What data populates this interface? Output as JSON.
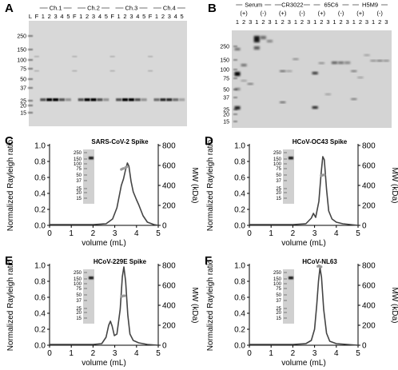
{
  "panels": {
    "A": {
      "letter": "A",
      "groups": [
        "Ch.1",
        "Ch.2",
        "Ch.3",
        "Ch.4"
      ],
      "lane_labels": [
        "L",
        "F",
        "1",
        "2",
        "3",
        "4",
        "5",
        "F",
        "1",
        "2",
        "3",
        "4",
        "5",
        "F",
        "1",
        "2",
        "3",
        "4",
        "5",
        "F",
        "1",
        "2",
        "3",
        "4",
        "5"
      ],
      "markers": [
        "250",
        "150",
        "100",
        "75",
        "50",
        "37",
        "25",
        "20",
        "15"
      ]
    },
    "B": {
      "letter": "B",
      "groups": [
        {
          "name": "Serum",
          "subs": [
            "(+)",
            "(-)"
          ],
          "lanes": [
            "1",
            "2",
            "3",
            "1",
            "2",
            "3"
          ]
        },
        {
          "name": "CR3022",
          "subs": [
            "(+)",
            "(-)"
          ],
          "lanes": [
            "1",
            "2",
            "3",
            "1",
            "2",
            "3"
          ]
        },
        {
          "name": "65C6",
          "subs": [
            "(+)",
            "(-)"
          ],
          "lanes": [
            "1",
            "2",
            "3",
            "1",
            "2",
            "3"
          ]
        },
        {
          "name": "H5M9",
          "subs": [
            "(+)",
            "(-)"
          ],
          "lanes": [
            "1",
            "2",
            "3",
            "1",
            "2",
            "3"
          ]
        }
      ],
      "markers": [
        "250",
        "150",
        "100",
        "75",
        "50",
        "37",
        "25",
        "20",
        "15"
      ]
    },
    "C": {
      "letter": "C",
      "chart_data": {
        "type": "line",
        "title": "SARS-CoV-2 Spike",
        "xlabel": "volume (mL)",
        "ylabel": "Normalized Rayleigh ratio",
        "y2label": "MW (kDa)",
        "xlim": [
          0,
          5
        ],
        "ylim": [
          0,
          1.0
        ],
        "y2lim": [
          0,
          800
        ],
        "xticks": [
          "0",
          "1",
          "2",
          "3",
          "4",
          "5"
        ],
        "yticks": [
          "0.0",
          "0.2",
          "0.4",
          "0.6",
          "0.8",
          "1.0"
        ],
        "y2ticks": [
          "0",
          "200",
          "400",
          "600",
          "800"
        ],
        "series": [
          {
            "values": [
              [
                0,
                0.01
              ],
              [
                2.0,
                0.01
              ],
              [
                2.6,
                0.02
              ],
              [
                2.9,
                0.08
              ],
              [
                3.1,
                0.22
              ],
              [
                3.3,
                0.5
              ],
              [
                3.4,
                0.58
              ],
              [
                3.5,
                0.7
              ],
              [
                3.58,
                0.78
              ],
              [
                3.65,
                0.74
              ],
              [
                3.75,
                0.55
              ],
              [
                3.85,
                0.42
              ],
              [
                4.0,
                0.32
              ],
              [
                4.1,
                0.26
              ],
              [
                4.3,
                0.12
              ],
              [
                4.5,
                0.04
              ],
              [
                4.8,
                0.01
              ],
              [
                5.0,
                0.0
              ]
            ]
          }
        ],
        "mw_points": [
          [
            3.3,
            560
          ],
          [
            3.35,
            565
          ],
          [
            3.4,
            570
          ],
          [
            3.5,
            580
          ],
          [
            3.55,
            585
          ]
        ],
        "gel_markers": [
          "250",
          "150",
          "100",
          "75",
          "50",
          "37",
          "25",
          "20",
          "15"
        ]
      }
    },
    "D": {
      "letter": "D",
      "chart_data": {
        "type": "line",
        "title": "HCoV-OC43 Spike",
        "xlabel": "volume (mL)",
        "ylabel": "Normalized Rayleigh ratio",
        "y2label": "MW (kDa)",
        "xlim": [
          0,
          5
        ],
        "ylim": [
          0,
          1.0
        ],
        "y2lim": [
          0,
          800
        ],
        "xticks": [
          "0",
          "1",
          "2",
          "3",
          "4",
          "5"
        ],
        "yticks": [
          "0.0",
          "0.2",
          "0.4",
          "0.6",
          "0.8",
          "1.0"
        ],
        "y2ticks": [
          "0",
          "200",
          "400",
          "600",
          "800"
        ],
        "series": [
          {
            "values": [
              [
                0,
                0.01
              ],
              [
                2.0,
                0.01
              ],
              [
                2.6,
                0.02
              ],
              [
                2.85,
                0.09
              ],
              [
                2.95,
                0.15
              ],
              [
                3.05,
                0.1
              ],
              [
                3.2,
                0.3
              ],
              [
                3.3,
                0.65
              ],
              [
                3.38,
                0.86
              ],
              [
                3.45,
                0.82
              ],
              [
                3.55,
                0.45
              ],
              [
                3.65,
                0.18
              ],
              [
                3.8,
                0.08
              ],
              [
                4.0,
                0.04
              ],
              [
                4.3,
                0.02
              ],
              [
                5.0,
                0.0
              ]
            ]
          }
        ],
        "mw_points": [
          [
            3.3,
            500
          ],
          [
            3.35,
            500
          ],
          [
            3.4,
            505
          ],
          [
            3.45,
            505
          ]
        ],
        "gel_markers": [
          "250",
          "150",
          "100",
          "75",
          "50",
          "37",
          "25",
          "20",
          "15"
        ]
      }
    },
    "E": {
      "letter": "E",
      "chart_data": {
        "type": "line",
        "title": "HCoV-229E Spike",
        "xlabel": "volume (mL)",
        "ylabel": "Normalized Rayleigh ratio",
        "y2label": "MW (kDa)",
        "xlim": [
          0,
          5
        ],
        "ylim": [
          0,
          1.0
        ],
        "y2lim": [
          0,
          800
        ],
        "xticks": [
          "0",
          "1",
          "2",
          "3",
          "4",
          "5"
        ],
        "yticks": [
          "0.0",
          "0.2",
          "0.4",
          "0.6",
          "0.8",
          "1.0"
        ],
        "y2ticks": [
          "0",
          "200",
          "400",
          "600",
          "800"
        ],
        "series": [
          {
            "values": [
              [
                0,
                0.01
              ],
              [
                2.0,
                0.01
              ],
              [
                2.4,
                0.02
              ],
              [
                2.6,
                0.1
              ],
              [
                2.72,
                0.25
              ],
              [
                2.8,
                0.3
              ],
              [
                2.88,
                0.24
              ],
              [
                2.98,
                0.12
              ],
              [
                3.1,
                0.14
              ],
              [
                3.25,
                0.45
              ],
              [
                3.35,
                0.86
              ],
              [
                3.42,
                0.98
              ],
              [
                3.5,
                0.8
              ],
              [
                3.6,
                0.38
              ],
              [
                3.7,
                0.14
              ],
              [
                3.85,
                0.06
              ],
              [
                4.1,
                0.03
              ],
              [
                4.5,
                0.01
              ],
              [
                5.0,
                0.0
              ]
            ]
          }
        ],
        "mw_points": [
          [
            3.3,
            490
          ],
          [
            3.35,
            490
          ],
          [
            3.4,
            495
          ],
          [
            3.45,
            495
          ]
        ],
        "gel_markers": [
          "250",
          "150",
          "100",
          "75",
          "50",
          "37",
          "25",
          "20",
          "15"
        ]
      }
    },
    "F": {
      "letter": "F",
      "chart_data": {
        "type": "line",
        "title": "HCoV-NL63",
        "xlabel": "volume (mL)",
        "ylabel": "Normalized Rayleigh ratio",
        "y2label": "MW (kDa)",
        "xlim": [
          0,
          5
        ],
        "ylim": [
          0,
          1.0
        ],
        "y2lim": [
          0,
          800
        ],
        "xticks": [
          "0",
          "1",
          "2",
          "3",
          "4",
          "5"
        ],
        "yticks": [
          "0.0",
          "0.2",
          "0.4",
          "0.6",
          "0.8",
          "1.0"
        ],
        "y2ticks": [
          "0",
          "200",
          "400",
          "600",
          "800"
        ],
        "series": [
          {
            "values": [
              [
                0,
                0.01
              ],
              [
                2.0,
                0.01
              ],
              [
                2.6,
                0.02
              ],
              [
                2.85,
                0.06
              ],
              [
                3.0,
                0.2
              ],
              [
                3.1,
                0.5
              ],
              [
                3.18,
                0.8
              ],
              [
                3.25,
                0.97
              ],
              [
                3.32,
                0.85
              ],
              [
                3.42,
                0.45
              ],
              [
                3.55,
                0.15
              ],
              [
                3.7,
                0.05
              ],
              [
                4.0,
                0.02
              ],
              [
                5.0,
                0.0
              ]
            ]
          }
        ],
        "mw_points": [
          [
            3.15,
            790
          ],
          [
            3.2,
            795
          ],
          [
            3.25,
            790
          ],
          [
            3.3,
            785
          ]
        ],
        "gel_markers": [
          "250",
          "150",
          "100",
          "75",
          "50",
          "37",
          "25",
          "20",
          "15"
        ]
      }
    }
  }
}
